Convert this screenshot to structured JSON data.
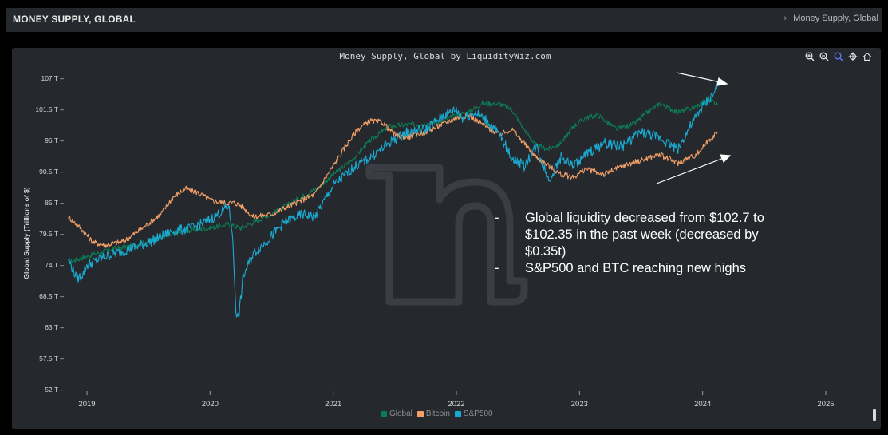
{
  "header": {
    "title": "MONEY SUPPLY, GLOBAL",
    "breadcrumb_sep": "›",
    "breadcrumb": "Money Supply, Global"
  },
  "toolbar": {
    "icons": [
      "zoom-in-icon",
      "zoom-out-icon",
      "zoom-select-icon",
      "pan-icon",
      "reset-home-icon"
    ],
    "active_color": "#5b7cff"
  },
  "chart_data": {
    "type": "line",
    "title": "Money Supply, Global by LiquidityWiz.com",
    "ylabel": "Global Supply (Trillions of $)",
    "xlabel": "",
    "xlim": [
      2018.85,
      2025.25
    ],
    "ylim": [
      52,
      109
    ],
    "x_ticks": [
      {
        "value": 2019,
        "label": "2019"
      },
      {
        "value": 2020,
        "label": "2020"
      },
      {
        "value": 2021,
        "label": "2021"
      },
      {
        "value": 2022,
        "label": "2022"
      },
      {
        "value": 2023,
        "label": "2023"
      },
      {
        "value": 2024,
        "label": "2024"
      },
      {
        "value": 2025,
        "label": "2025"
      }
    ],
    "y_ticks": [
      {
        "value": 107,
        "label": "107 T"
      },
      {
        "value": 101.5,
        "label": "101.5 T"
      },
      {
        "value": 96,
        "label": "96 T"
      },
      {
        "value": 90.5,
        "label": "90.5 T"
      },
      {
        "value": 85,
        "label": "85 T"
      },
      {
        "value": 79.5,
        "label": "79.5 T"
      },
      {
        "value": 74,
        "label": "74 T"
      },
      {
        "value": 68.5,
        "label": "68.5 T"
      },
      {
        "value": 63,
        "label": "63 T"
      },
      {
        "value": 57.5,
        "label": "57.5 T"
      },
      {
        "value": 52,
        "label": "52 T"
      }
    ],
    "grid": false,
    "legend_position": "bottom-center",
    "series": [
      {
        "name": "Global",
        "color": "#0e7a55",
        "points": [
          [
            2018.85,
            74.5
          ],
          [
            2019.0,
            75.5
          ],
          [
            2019.2,
            76.8
          ],
          [
            2019.4,
            77.5
          ],
          [
            2019.6,
            78.8
          ],
          [
            2019.8,
            80.0
          ],
          [
            2020.0,
            80.5
          ],
          [
            2020.15,
            81.2
          ],
          [
            2020.25,
            80.5
          ],
          [
            2020.35,
            81.5
          ],
          [
            2020.5,
            83.0
          ],
          [
            2020.7,
            85.5
          ],
          [
            2020.9,
            88.0
          ],
          [
            2021.0,
            90.0
          ],
          [
            2021.15,
            92.5
          ],
          [
            2021.3,
            96.0
          ],
          [
            2021.45,
            98.5
          ],
          [
            2021.6,
            98.8
          ],
          [
            2021.75,
            99.0
          ],
          [
            2021.9,
            99.5
          ],
          [
            2022.0,
            100.5
          ],
          [
            2022.1,
            101.0
          ],
          [
            2022.2,
            102.5
          ],
          [
            2022.35,
            102.5
          ],
          [
            2022.45,
            101.5
          ],
          [
            2022.55,
            98.0
          ],
          [
            2022.65,
            95.0
          ],
          [
            2022.75,
            94.5
          ],
          [
            2022.85,
            95.5
          ],
          [
            2022.95,
            98.5
          ],
          [
            2023.05,
            100.0
          ],
          [
            2023.15,
            100.5
          ],
          [
            2023.3,
            98.0
          ],
          [
            2023.45,
            99.0
          ],
          [
            2023.55,
            101.0
          ],
          [
            2023.65,
            102.5
          ],
          [
            2023.8,
            101.0
          ],
          [
            2023.95,
            102.0
          ],
          [
            2024.05,
            103.5
          ],
          [
            2024.1,
            102.7
          ],
          [
            2024.12,
            102.35
          ]
        ]
      },
      {
        "name": "Bitcoin",
        "color": "#f2a068",
        "points": [
          [
            2018.85,
            82.5
          ],
          [
            2018.95,
            80.5
          ],
          [
            2019.05,
            78.0
          ],
          [
            2019.15,
            77.5
          ],
          [
            2019.3,
            78.2
          ],
          [
            2019.45,
            80.5
          ],
          [
            2019.6,
            83.0
          ],
          [
            2019.7,
            86.0
          ],
          [
            2019.8,
            87.5
          ],
          [
            2019.9,
            86.8
          ],
          [
            2020.0,
            85.5
          ],
          [
            2020.1,
            85.0
          ],
          [
            2020.2,
            85.0
          ],
          [
            2020.25,
            84.5
          ],
          [
            2020.35,
            82.5
          ],
          [
            2020.5,
            83.0
          ],
          [
            2020.7,
            85.0
          ],
          [
            2020.85,
            86.5
          ],
          [
            2021.0,
            91.5
          ],
          [
            2021.1,
            95.0
          ],
          [
            2021.2,
            98.0
          ],
          [
            2021.3,
            99.5
          ],
          [
            2021.4,
            99.2
          ],
          [
            2021.5,
            97.0
          ],
          [
            2021.6,
            96.5
          ],
          [
            2021.75,
            97.5
          ],
          [
            2021.9,
            99.0
          ],
          [
            2022.0,
            100.0
          ],
          [
            2022.1,
            100.5
          ],
          [
            2022.2,
            99.0
          ],
          [
            2022.35,
            97.0
          ],
          [
            2022.45,
            98.0
          ],
          [
            2022.55,
            95.5
          ],
          [
            2022.65,
            93.0
          ],
          [
            2022.75,
            91.5
          ],
          [
            2022.85,
            90.0
          ],
          [
            2022.95,
            89.5
          ],
          [
            2023.05,
            91.0
          ],
          [
            2023.2,
            90.0
          ],
          [
            2023.35,
            91.5
          ],
          [
            2023.5,
            92.5
          ],
          [
            2023.65,
            93.5
          ],
          [
            2023.8,
            92.0
          ],
          [
            2023.95,
            93.5
          ],
          [
            2024.05,
            96.0
          ],
          [
            2024.12,
            97.5
          ]
        ]
      },
      {
        "name": "S&P500",
        "color": "#1aaad0",
        "points": [
          [
            2018.85,
            75.0
          ],
          [
            2018.92,
            71.5
          ],
          [
            2018.97,
            72.5
          ],
          [
            2019.0,
            74.0
          ],
          [
            2019.15,
            75.5
          ],
          [
            2019.3,
            76.5
          ],
          [
            2019.5,
            78.0
          ],
          [
            2019.7,
            80.0
          ],
          [
            2019.85,
            80.5
          ],
          [
            2020.0,
            82.0
          ],
          [
            2020.1,
            83.5
          ],
          [
            2020.15,
            84.5
          ],
          [
            2020.18,
            80.0
          ],
          [
            2020.21,
            66.0
          ],
          [
            2020.23,
            64.5
          ],
          [
            2020.27,
            72.0
          ],
          [
            2020.35,
            76.0
          ],
          [
            2020.45,
            78.0
          ],
          [
            2020.6,
            81.5
          ],
          [
            2020.75,
            83.0
          ],
          [
            2020.85,
            82.5
          ],
          [
            2021.0,
            88.0
          ],
          [
            2021.15,
            91.0
          ],
          [
            2021.3,
            93.0
          ],
          [
            2021.45,
            95.5
          ],
          [
            2021.6,
            97.5
          ],
          [
            2021.75,
            98.0
          ],
          [
            2021.9,
            100.5
          ],
          [
            2022.0,
            101.5
          ],
          [
            2022.05,
            100.0
          ],
          [
            2022.15,
            101.0
          ],
          [
            2022.25,
            99.5
          ],
          [
            2022.35,
            97.0
          ],
          [
            2022.45,
            93.0
          ],
          [
            2022.55,
            91.5
          ],
          [
            2022.65,
            95.0
          ],
          [
            2022.75,
            89.0
          ],
          [
            2022.85,
            93.0
          ],
          [
            2022.95,
            91.5
          ],
          [
            2023.05,
            93.5
          ],
          [
            2023.2,
            95.5
          ],
          [
            2023.35,
            95.0
          ],
          [
            2023.5,
            97.5
          ],
          [
            2023.65,
            96.5
          ],
          [
            2023.8,
            94.5
          ],
          [
            2023.9,
            98.5
          ],
          [
            2024.0,
            102.0
          ],
          [
            2024.1,
            104.5
          ],
          [
            2024.12,
            106.5
          ]
        ]
      }
    ],
    "annotation_items": [
      "Global liquidity decreased from $102.7 to $102.35 in the past week (decreased by $0.35t)",
      "S&P500 and BTC reaching new highs"
    ],
    "annotation_bullet": "-",
    "watermark": "logo"
  }
}
